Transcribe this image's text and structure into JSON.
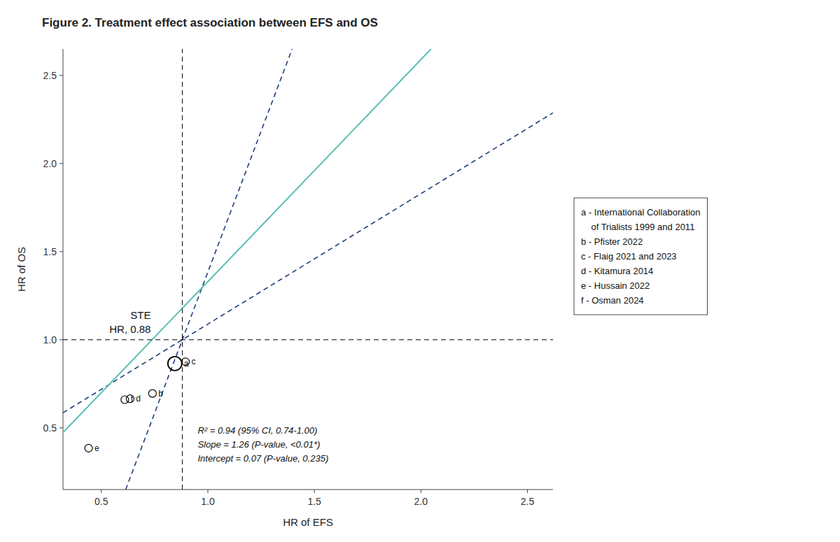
{
  "chart_data": {
    "type": "scatter",
    "title": "Figure 2. Treatment effect association between EFS and OS",
    "x_label": "HR of EFS",
    "y_label": "HR of OS",
    "xlim": [
      0.32,
      2.62
    ],
    "ylim": [
      0.15,
      2.65
    ],
    "xticks": [
      0.5,
      {
        "value": 1,
        "label": "1.0"
      },
      1.5,
      {
        "value": 2,
        "label": "2.0"
      },
      2.5
    ],
    "yticks": [
      0.5,
      {
        "value": 1,
        "label": "1.0"
      },
      1.5,
      {
        "value": 2,
        "label": "2.0"
      },
      2.5
    ],
    "series": [
      {
        "type": "line",
        "color": "#1f3f7a",
        "line_style": "dashed",
        "x": [
          0.614375,
          1.395625
        ],
        "values": [
          0.15,
          2.65
        ]
      },
      {
        "type": "line",
        "color": "#1f3f7a",
        "line_style": "dashed",
        "x": [
          0.32,
          2.62
        ],
        "values": [
          0.5856,
          2.2876
        ]
      },
      {
        "type": "line",
        "color": "#5bbfb5",
        "line_style": "solid",
        "x": [
          0.32,
          2.0476
        ],
        "values": [
          0.4732,
          2.649976
        ]
      },
      {
        "type": "line",
        "color": "#000000",
        "line_style": "dashed",
        "x": [
          0.32,
          2.62
        ],
        "values": [
          1.0,
          1.0
        ]
      },
      {
        "type": "line",
        "color": "#000000",
        "line_style": "dashed",
        "x": [
          0.88,
          0.88
        ],
        "values": [
          0.15,
          2.65
        ]
      },
      {
        "type": "scatter",
        "marker": "circle-open",
        "color": "#000000",
        "x": [
          0.845,
          0.74,
          0.895,
          0.635,
          0.44,
          0.61
        ],
        "values": [
          0.865,
          0.695,
          0.875,
          0.665,
          0.385,
          0.66
        ],
        "labels": [
          "a",
          "b",
          "c",
          "d",
          "e",
          "f"
        ],
        "big": [
          true,
          false,
          false,
          false,
          false,
          false
        ]
      }
    ],
    "annotations": [
      "STE",
      "HR, 0.88"
    ],
    "stats_lines": [
      "R² = 0.94 (95% CI, 0.74-1.00)",
      "Slope = 1.26 (P-value, <0.01*)",
      "Intercept = 0.07 (P-value, 0.235)"
    ],
    "key_lines": [
      "a - International Collaboration",
      "    of Trialists 1999 and 2011",
      "b - Pfister 2022",
      "c - Flaig 2021 and 2023",
      "d - Kitamura 2014",
      "e - Hussain 2022",
      "f - Osman 2024"
    ]
  }
}
